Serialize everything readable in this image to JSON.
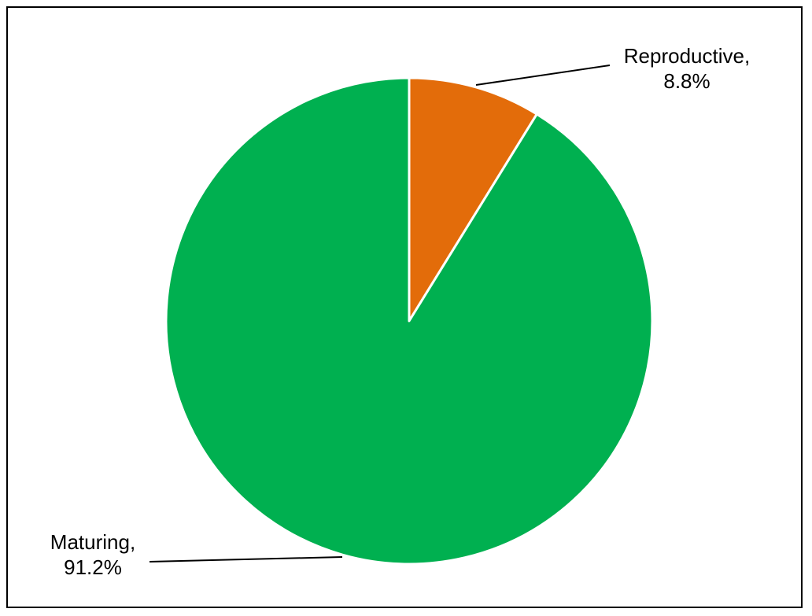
{
  "chart_data": {
    "type": "pie",
    "title": "",
    "start_angle_deg": 0,
    "direction": "clockwise",
    "slices": [
      {
        "label": "Reproductive",
        "value": 8.8,
        "label_line1": "Reproductive,",
        "label_line2": "8.8%",
        "color": "#e36c0a"
      },
      {
        "label": "Maturing",
        "value": 91.2,
        "label_line1": "Maturing,",
        "label_line2": "91.2%",
        "color": "#00b050"
      }
    ],
    "slice_border_color": "#ffffff",
    "leader_line_color": "#000000",
    "legend": "none"
  }
}
